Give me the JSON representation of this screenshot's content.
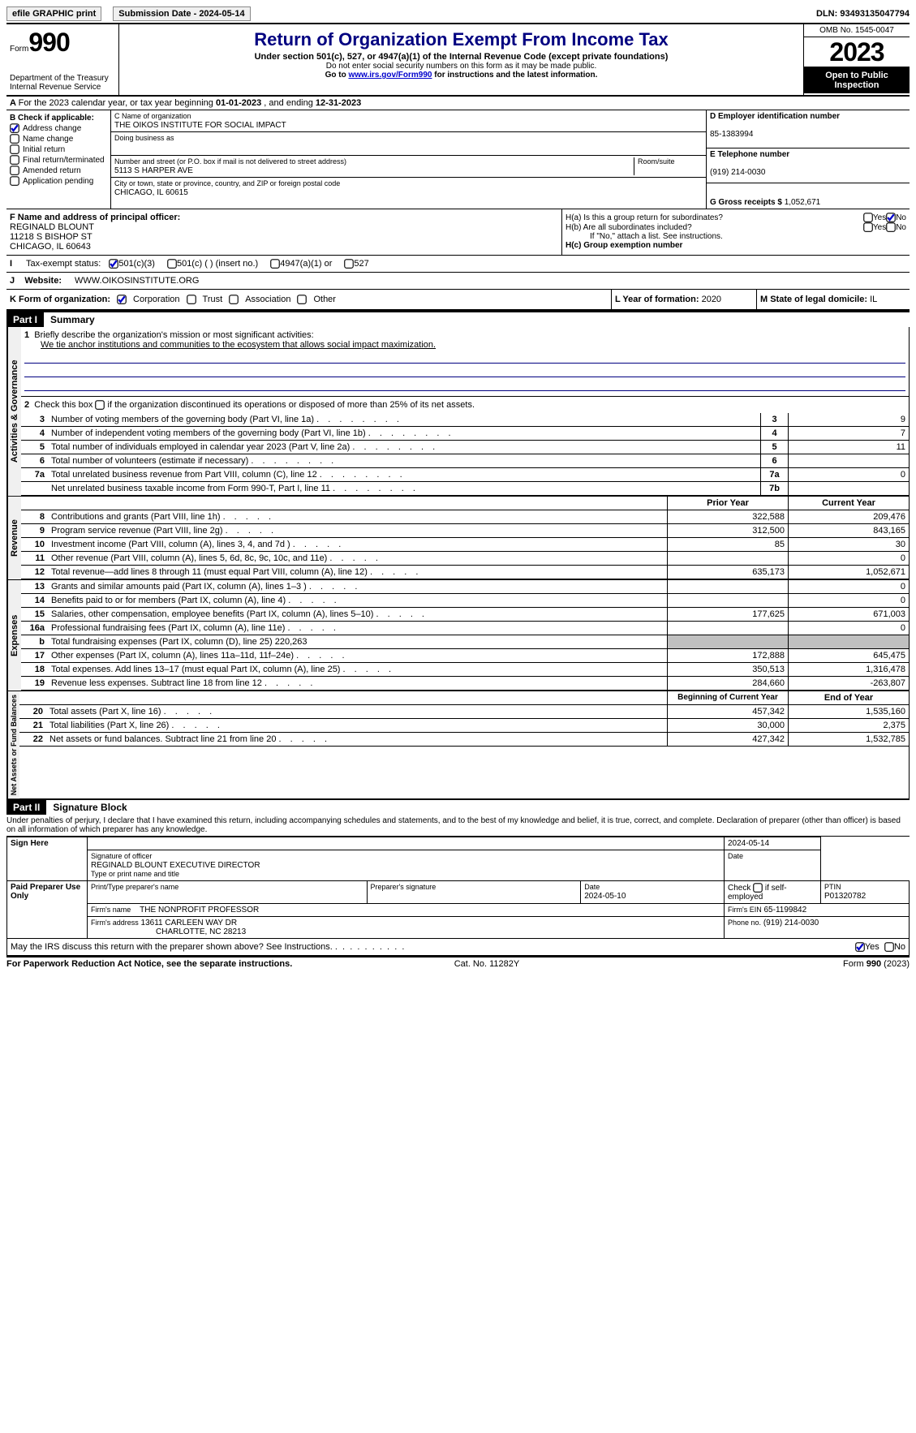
{
  "top": {
    "efile_btn": "efile GRAPHIC print",
    "submission_label": "Submission Date - 2024-05-14",
    "dln": "DLN: 93493135047794"
  },
  "header": {
    "form_label": "Form",
    "form_number": "990",
    "title": "Return of Organization Exempt From Income Tax",
    "subtitle": "Under section 501(c), 527, or 4947(a)(1) of the Internal Revenue Code (except private foundations)",
    "note1": "Do not enter social security numbers on this form as it may be made public.",
    "note2_pre": "Go to ",
    "note2_link": "www.irs.gov/Form990",
    "note2_post": " for instructions and the latest information.",
    "dept": "Department of the Treasury\nInternal Revenue Service",
    "omb": "OMB No. 1545-0047",
    "year": "2023",
    "open": "Open to Public Inspection"
  },
  "line_a": {
    "text_pre": "For the 2023 calendar year, or tax year beginning ",
    "begin": "01-01-2023",
    "mid": " , and ending ",
    "end": "12-31-2023"
  },
  "box_b": {
    "label": "B Check if applicable:",
    "items": [
      {
        "label": "Address change",
        "checked": true
      },
      {
        "label": "Name change",
        "checked": false
      },
      {
        "label": "Initial return",
        "checked": false
      },
      {
        "label": "Final return/terminated",
        "checked": false
      },
      {
        "label": "Amended return",
        "checked": false
      },
      {
        "label": "Application pending",
        "checked": false
      }
    ]
  },
  "box_c": {
    "name_label": "C Name of organization",
    "name": "THE OIKOS INSTITUTE FOR SOCIAL IMPACT",
    "dba_label": "Doing business as",
    "dba": "",
    "addr_label": "Number and street (or P.O. box if mail is not delivered to street address)",
    "addr": "5113 S HARPER AVE",
    "room_label": "Room/suite",
    "city_label": "City or town, state or province, country, and ZIP or foreign postal code",
    "city": "CHICAGO, IL  60615"
  },
  "box_d": {
    "label": "D Employer identification number",
    "value": "85-1383994"
  },
  "box_e": {
    "label": "E Telephone number",
    "value": "(919) 214-0030"
  },
  "box_g": {
    "label": "G Gross receipts $",
    "value": "1,052,671"
  },
  "box_f": {
    "label": "F  Name and address of principal officer:",
    "name": "REGINALD BLOUNT",
    "addr1": "11218 S BISHOP ST",
    "addr2": "CHICAGO, IL  60643"
  },
  "box_h": {
    "a_label": "H(a)  Is this a group return for subordinates?",
    "b_label": "H(b)  Are all subordinates included?",
    "b_note": "If \"No,\" attach a list. See instructions.",
    "c_label": "H(c)  Group exemption number"
  },
  "box_i": {
    "label": "Tax-exempt status:",
    "opts": [
      "501(c)(3)",
      "501(c) (  ) (insert no.)",
      "4947(a)(1) or",
      "527"
    ]
  },
  "box_j": {
    "label": "Website:",
    "value": "WWW.OIKOSINSTITUTE.ORG"
  },
  "box_k": {
    "label": "K Form of organization:",
    "opts": [
      "Corporation",
      "Trust",
      "Association",
      "Other"
    ]
  },
  "box_l": {
    "label": "L Year of formation:",
    "value": "2020"
  },
  "box_m": {
    "label": "M State of legal domicile:",
    "value": "IL"
  },
  "part1": {
    "hdr": "Part I",
    "title": "Summary"
  },
  "summary": {
    "l1_label": "Briefly describe the organization's mission or most significant activities:",
    "l1_text": "We tie anchor institutions and communities to the ecosystem that allows social impact maximization.",
    "l2": "Check this box      if the organization discontinued its operations or disposed of more than 25% of its net assets.",
    "governance": [
      {
        "n": "3",
        "desc": "Number of voting members of the governing body (Part VI, line 1a)",
        "ln": "3",
        "v": "9"
      },
      {
        "n": "4",
        "desc": "Number of independent voting members of the governing body (Part VI, line 1b)",
        "ln": "4",
        "v": "7"
      },
      {
        "n": "5",
        "desc": "Total number of individuals employed in calendar year 2023 (Part V, line 2a)",
        "ln": "5",
        "v": "11"
      },
      {
        "n": "6",
        "desc": "Total number of volunteers (estimate if necessary)",
        "ln": "6",
        "v": ""
      },
      {
        "n": "7a",
        "desc": "Total unrelated business revenue from Part VIII, column (C), line 12",
        "ln": "7a",
        "v": "0"
      },
      {
        "n": "",
        "desc": "Net unrelated business taxable income from Form 990-T, Part I, line 11",
        "ln": "7b",
        "v": ""
      }
    ],
    "col_hdr_prior": "Prior Year",
    "col_hdr_current": "Current Year",
    "revenue": [
      {
        "n": "8",
        "desc": "Contributions and grants (Part VIII, line 1h)",
        "p": "322,588",
        "c": "209,476"
      },
      {
        "n": "9",
        "desc": "Program service revenue (Part VIII, line 2g)",
        "p": "312,500",
        "c": "843,165"
      },
      {
        "n": "10",
        "desc": "Investment income (Part VIII, column (A), lines 3, 4, and 7d )",
        "p": "85",
        "c": "30"
      },
      {
        "n": "11",
        "desc": "Other revenue (Part VIII, column (A), lines 5, 6d, 8c, 9c, 10c, and 11e)",
        "p": "",
        "c": "0"
      },
      {
        "n": "12",
        "desc": "Total revenue—add lines 8 through 11 (must equal Part VIII, column (A), line 12)",
        "p": "635,173",
        "c": "1,052,671"
      }
    ],
    "expenses": [
      {
        "n": "13",
        "desc": "Grants and similar amounts paid (Part IX, column (A), lines 1–3 )",
        "p": "",
        "c": "0"
      },
      {
        "n": "14",
        "desc": "Benefits paid to or for members (Part IX, column (A), line 4)",
        "p": "",
        "c": "0"
      },
      {
        "n": "15",
        "desc": "Salaries, other compensation, employee benefits (Part IX, column (A), lines 5–10)",
        "p": "177,625",
        "c": "671,003"
      },
      {
        "n": "16a",
        "desc": "Professional fundraising fees (Part IX, column (A), line 11e)",
        "p": "",
        "c": "0"
      },
      {
        "n": "b",
        "desc": "Total fundraising expenses (Part IX, column (D), line 25) 220,263",
        "p": "SHADE",
        "c": "SHADE"
      },
      {
        "n": "17",
        "desc": "Other expenses (Part IX, column (A), lines 11a–11d, 11f–24e)",
        "p": "172,888",
        "c": "645,475"
      },
      {
        "n": "18",
        "desc": "Total expenses. Add lines 13–17 (must equal Part IX, column (A), line 25)",
        "p": "350,513",
        "c": "1,316,478"
      },
      {
        "n": "19",
        "desc": "Revenue less expenses. Subtract line 18 from line 12",
        "p": "284,660",
        "c": "-263,807"
      }
    ],
    "col_hdr_beg": "Beginning of Current Year",
    "col_hdr_end": "End of Year",
    "netassets": [
      {
        "n": "20",
        "desc": "Total assets (Part X, line 16)",
        "p": "457,342",
        "c": "1,535,160"
      },
      {
        "n": "21",
        "desc": "Total liabilities (Part X, line 26)",
        "p": "30,000",
        "c": "2,375"
      },
      {
        "n": "22",
        "desc": "Net assets or fund balances. Subtract line 21 from line 20",
        "p": "427,342",
        "c": "1,532,785"
      }
    ]
  },
  "vlabels": {
    "gov": "Activities & Governance",
    "rev": "Revenue",
    "exp": "Expenses",
    "net": "Net Assets or Fund Balances"
  },
  "part2": {
    "hdr": "Part II",
    "title": "Signature Block",
    "perjury": "Under penalties of perjury, I declare that I have examined this return, including accompanying schedules and statements, and to the best of my knowledge and belief, it is true, correct, and complete. Declaration of preparer (other than officer) is based on all information of which preparer has any knowledge."
  },
  "sign": {
    "sign_here": "Sign Here",
    "sig_off_label": "Signature of officer",
    "sig_off": "REGINALD BLOUNT  EXECUTIVE DIRECTOR",
    "type_label": "Type or print name and title",
    "date_label": "Date",
    "date": "2024-05-14",
    "paid": "Paid Preparer Use Only",
    "prep_name_label": "Print/Type preparer's name",
    "prep_sig_label": "Preparer's signature",
    "prep_date_label": "Date",
    "prep_date": "2024-05-10",
    "self_emp": "Check       if self-employed",
    "ptin_label": "PTIN",
    "ptin": "P01320782",
    "firm_name_label": "Firm's name",
    "firm_name": "THE NONPROFIT PROFESSOR",
    "firm_ein_label": "Firm's EIN",
    "firm_ein": "65-1199842",
    "firm_addr_label": "Firm's address",
    "firm_addr1": "13611 CARLEEN WAY DR",
    "firm_addr2": "CHARLOTTE, NC  28213",
    "phone_label": "Phone no.",
    "phone": "(919) 214-0030",
    "discuss": "May the IRS discuss this return with the preparer shown above? See Instructions."
  },
  "footer": {
    "left": "For Paperwork Reduction Act Notice, see the separate instructions.",
    "cat": "Cat. No. 11282Y",
    "right": "Form 990 (2023)"
  },
  "yesno": {
    "yes": "Yes",
    "no": "No"
  }
}
